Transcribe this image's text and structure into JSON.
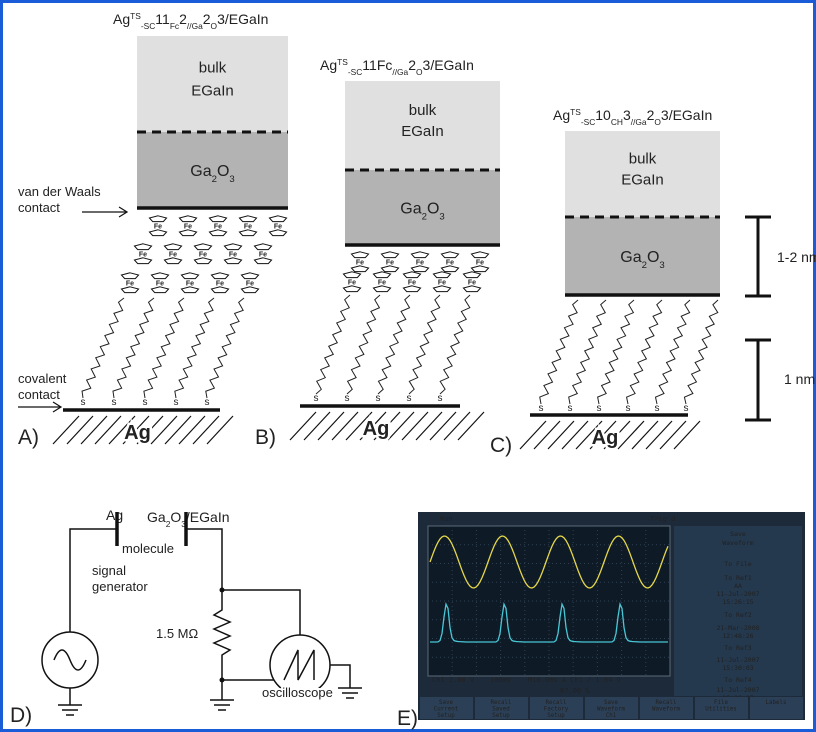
{
  "panel_a": {
    "label": "A)",
    "title": [
      "Ag",
      "TS",
      "-SC",
      "11",
      "Fc",
      "2",
      "//Ga",
      "2",
      "O",
      "3",
      "/EGaIn"
    ],
    "vdw": [
      "van der Waals",
      "contact"
    ],
    "covalent": [
      "covalent",
      "contact"
    ]
  },
  "panel_b": {
    "label": "B)",
    "title": [
      "Ag",
      "TS",
      "-SC",
      "11",
      "Fc",
      "//Ga",
      "2",
      "O",
      "3",
      "/EGaIn"
    ]
  },
  "panel_c": {
    "label": "C)",
    "title": [
      "Ag",
      "TS",
      "-SC",
      "10",
      "CH",
      "3",
      "//Ga",
      "2",
      "O",
      "3",
      "/EGaIn"
    ],
    "scale_oxide": "1-2 nm",
    "scale_chain": "1 nm"
  },
  "common": {
    "bulk": "bulk",
    "egain": "EGaIn",
    "oxide": [
      "Ga",
      "2",
      "O",
      "3"
    ],
    "fe": "Fe",
    "sulfur": "s",
    "ag": "Ag"
  },
  "panel_d": {
    "label": "D)",
    "ag": "Ag",
    "top": [
      "Ga",
      "2",
      "O",
      "3",
      "/EGaIn"
    ],
    "molecule": "molecule",
    "generator": [
      "signal",
      "generator"
    ],
    "resistor": "1.5 MΩ",
    "oscilloscope": "oscilloscope"
  },
  "panel_e": {
    "label": "E)",
    "status": [
      "Run",
      "Trig'd"
    ],
    "menu": [
      "Save",
      "Waveform",
      "To File",
      "To Ref1",
      "AA",
      "11-Jul-2007",
      "15:26:15",
      "To Ref2",
      "21-Mar-2008",
      "12:48:26",
      "To Ref3",
      "11-Jul-2007",
      "15:30:03",
      "To Ref4",
      "11-Jul-2007",
      "15:26:17"
    ],
    "readout": [
      "Ch1  2.00 V",
      "100mV",
      "M10.0ms A  Ch1 ∕  1.04 V",
      "67.00 %"
    ],
    "buttons": [
      [
        "Save",
        "Current",
        "Setup"
      ],
      [
        "Recall",
        "Saved",
        "Setup"
      ],
      [
        "Recall",
        "Factory",
        "Setup"
      ],
      [
        "Save",
        "Waveform",
        "Ch1"
      ],
      [
        "Recall",
        "Waveform"
      ],
      [
        "File",
        "Utilities"
      ],
      [
        "Labels"
      ]
    ]
  }
}
